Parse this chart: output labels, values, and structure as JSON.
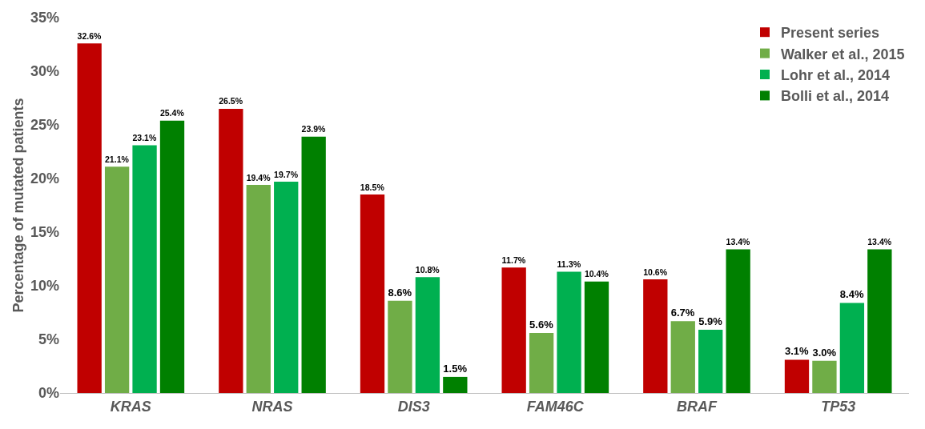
{
  "chart_data": {
    "type": "bar",
    "ylabel": "Percentage of mutated patients",
    "categories": [
      "KRAS",
      "NRAS",
      "DIS3",
      "FAM46C",
      "BRAF",
      "TP53"
    ],
    "series": [
      {
        "name": "Present series",
        "color": "#c00000",
        "values": [
          32.6,
          26.5,
          18.5,
          11.7,
          10.6,
          3.1
        ],
        "value_labels": [
          "32.6%",
          "26.5%",
          "18.5%",
          "11.7%",
          "10.6%",
          "3.1%"
        ]
      },
      {
        "name": "Walker et al., 2015",
        "color": "#70ad47",
        "values": [
          21.1,
          19.4,
          8.6,
          5.6,
          6.7,
          3.0
        ],
        "value_labels": [
          "21.1%",
          "19.4%",
          "8.6%",
          "5.6%",
          "6.7%",
          "3.0%"
        ]
      },
      {
        "name": "Lohr et al., 2014",
        "color": "#00b050",
        "values": [
          23.1,
          19.7,
          10.8,
          11.3,
          5.9,
          8.4
        ],
        "value_labels": [
          "23.1%",
          "19.7%",
          "10.8%",
          "11.3%",
          "5.9%",
          "8.4%"
        ]
      },
      {
        "name": "Bolli et al., 2014",
        "color": "#008000",
        "values": [
          25.4,
          23.9,
          1.5,
          10.4,
          13.4,
          13.4
        ],
        "value_labels": [
          "25.4%",
          "23.9%",
          "1.5%",
          "10.4%",
          "13.4%",
          "13.4%"
        ]
      }
    ],
    "ylim": [
      0,
      35
    ],
    "yticks": [
      {
        "value": 0,
        "label": "0%"
      },
      {
        "value": 5,
        "label": "5%"
      },
      {
        "value": 10,
        "label": "10%"
      },
      {
        "value": 15,
        "label": "15%"
      },
      {
        "value": 20,
        "label": "20%"
      },
      {
        "value": 25,
        "label": "25%"
      },
      {
        "value": 30,
        "label": "30%"
      },
      {
        "value": 35,
        "label": "35%"
      }
    ],
    "grid": false,
    "legend": "top right"
  }
}
